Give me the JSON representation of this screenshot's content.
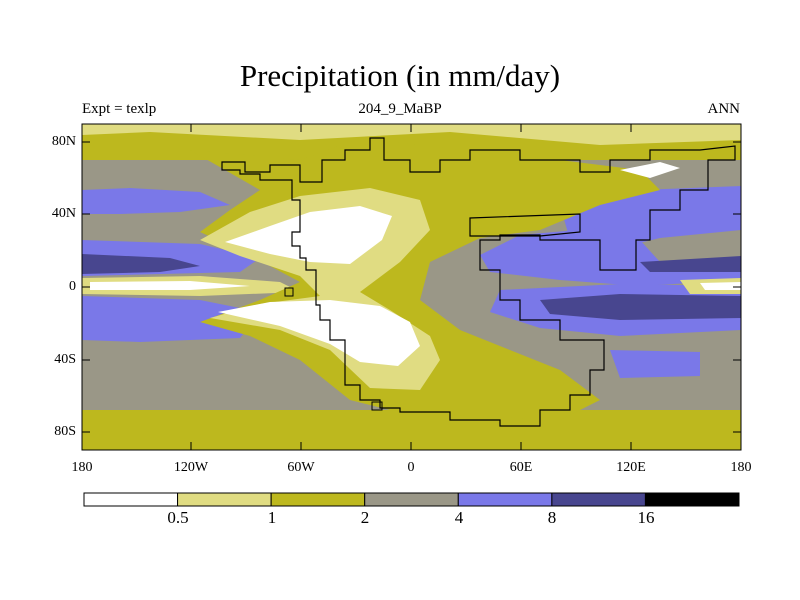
{
  "title": "Precipitation (in mm/day)",
  "left_label": "Expt = texlp",
  "center_label": "204_9_MaBP",
  "right_label": "ANN",
  "y_ticks": [
    "80N",
    "40N",
    "0",
    "40S",
    "80S"
  ],
  "x_ticks": [
    "180",
    "120W",
    "60W",
    "0",
    "60E",
    "120E",
    "180"
  ],
  "colorbar": {
    "labels": [
      "0.5",
      "1",
      "2",
      "4",
      "8",
      "16"
    ],
    "colors": [
      "#ffffff",
      "#e0dc82",
      "#bdb81e",
      "#9a9787",
      "#7a78e8",
      "#48468f",
      "#000000"
    ]
  },
  "colors": {
    "land_outline": "#000000",
    "frame": "#000000"
  }
}
